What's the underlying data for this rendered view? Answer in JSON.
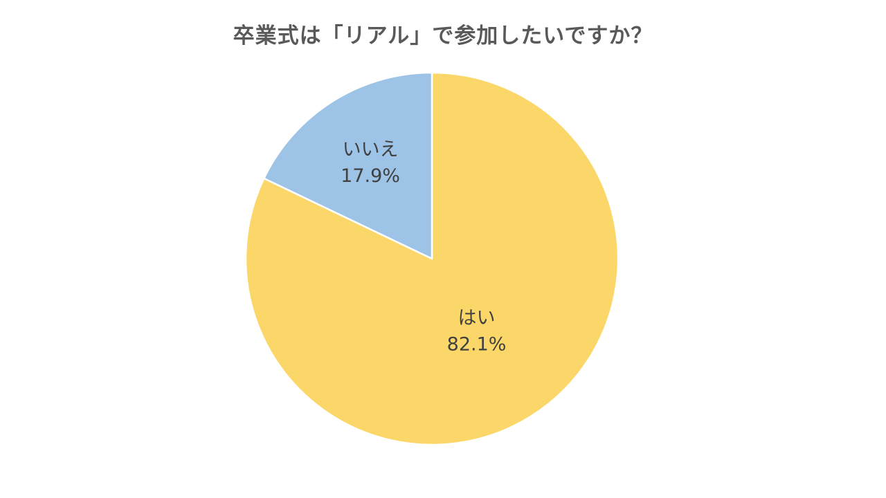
{
  "chart_data": {
    "type": "pie",
    "title": "卒業式は「リアル」で参加したいですか？",
    "slices": [
      {
        "label": "はい",
        "value": 82.1,
        "value_label": "82.1%",
        "color": "#FBD76A"
      },
      {
        "label": "いいえ",
        "value": 17.9,
        "value_label": "17.9%",
        "color": "#9DC3E6"
      }
    ],
    "start_angle": "12 o'clock",
    "direction": "clockwise",
    "legend": "none"
  }
}
